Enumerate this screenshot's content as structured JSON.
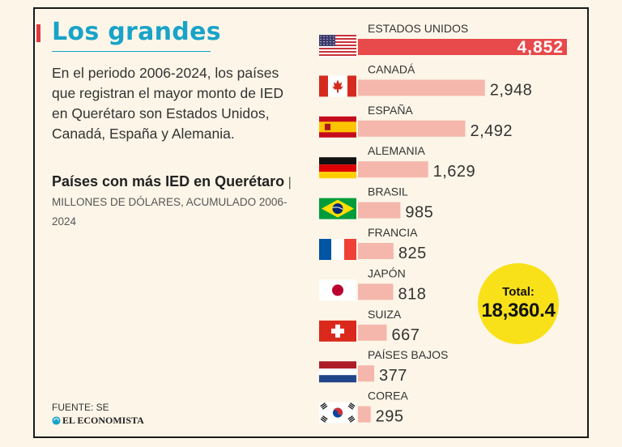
{
  "header": {
    "title": "Los grandes",
    "description": "En el periodo 2006-2024, los países que registran el mayor monto de IED en Querétaro son Estados Unidos, Canadá, España y Alemania.",
    "subtitle_strong": "Países con más IED en Querétaro",
    "subtitle_separator": "|",
    "subtitle_unit": "MILLONES DE DÓLARES, ACUMULADO 2006-2024"
  },
  "footer": {
    "source": "FUENTE: SE",
    "brand": "EL ECONOMISTA"
  },
  "total": {
    "label": "Total:",
    "value": "18,360.4"
  },
  "colors": {
    "accent_red": "#e03a3e",
    "title_blue": "#19a3c8",
    "bar_pink": "#f5b7ac",
    "highlight_bar": "#e8494b",
    "badge_yellow": "#f9e11a",
    "background": "#fdf6e8"
  },
  "chart_data": {
    "type": "bar",
    "orientation": "horizontal",
    "title": "Países con más IED en Querétaro",
    "unit": "Millones de dólares, acumulado 2006-2024",
    "categories": [
      "ESTADOS UNIDOS",
      "CANADÁ",
      "ESPAÑA",
      "ALEMANIA",
      "BRASIL",
      "FRANCIA",
      "JAPÓN",
      "SUIZA",
      "PAÍSES BAJOS",
      "COREA"
    ],
    "values": [
      4852,
      2948,
      2492,
      1629,
      985,
      825,
      818,
      667,
      377,
      295
    ],
    "value_labels": [
      "4,852",
      "2,948",
      "2,492",
      "1,629",
      "985",
      "825",
      "818",
      "667",
      "377",
      "295"
    ],
    "flags": [
      "usa-flag-icon",
      "canada-flag-icon",
      "spain-flag-icon",
      "germany-flag-icon",
      "brazil-flag-icon",
      "france-flag-icon",
      "japan-flag-icon",
      "switzerland-flag-icon",
      "netherlands-flag-icon",
      "korea-flag-icon"
    ],
    "highlight_index": 0,
    "xlim": [
      0,
      4852
    ]
  }
}
